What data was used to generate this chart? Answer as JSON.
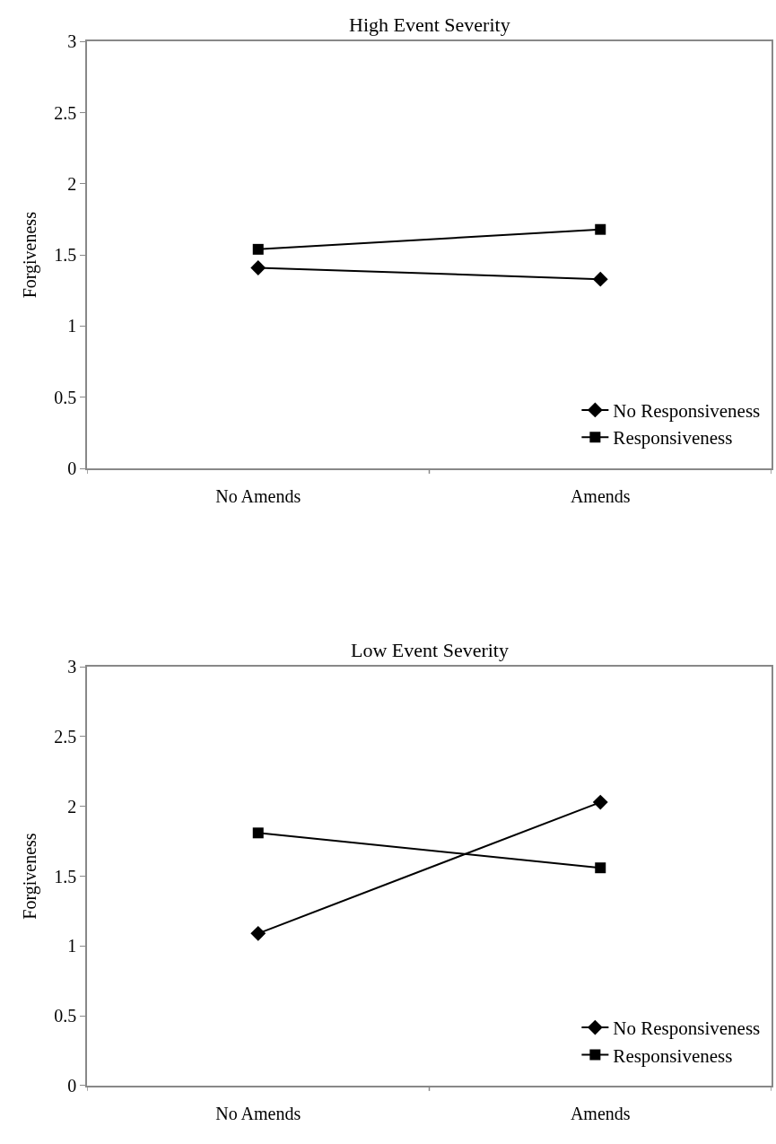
{
  "chart_data": [
    {
      "type": "line",
      "title": "High Event Severity",
      "ylabel": "Forgiveness",
      "categories": [
        "No Amends",
        "Amends"
      ],
      "ylim": [
        0,
        3
      ],
      "yticks": [
        0,
        0.5,
        1,
        1.5,
        2,
        2.5,
        3
      ],
      "legend": "bottom right",
      "series": [
        {
          "name": "No Responsiveness",
          "color": "#000000",
          "marker": "diamond",
          "values": [
            1.41,
            1.33
          ]
        },
        {
          "name": "Responsiveness",
          "color": "#000000",
          "marker": "square",
          "values": [
            1.54,
            1.68
          ]
        }
      ]
    },
    {
      "type": "line",
      "title": "Low Event Severity",
      "ylabel": "Forgiveness",
      "categories": [
        "No Amends",
        "Amends"
      ],
      "ylim": [
        0,
        3
      ],
      "yticks": [
        0,
        0.5,
        1,
        1.5,
        2,
        2.5,
        3
      ],
      "legend": "bottom right",
      "series": [
        {
          "name": "No Responsiveness",
          "color": "#000000",
          "marker": "diamond",
          "values": [
            1.09,
            2.03
          ]
        },
        {
          "name": "Responsiveness",
          "color": "#000000",
          "marker": "square",
          "values": [
            1.81,
            1.56
          ]
        }
      ]
    }
  ]
}
